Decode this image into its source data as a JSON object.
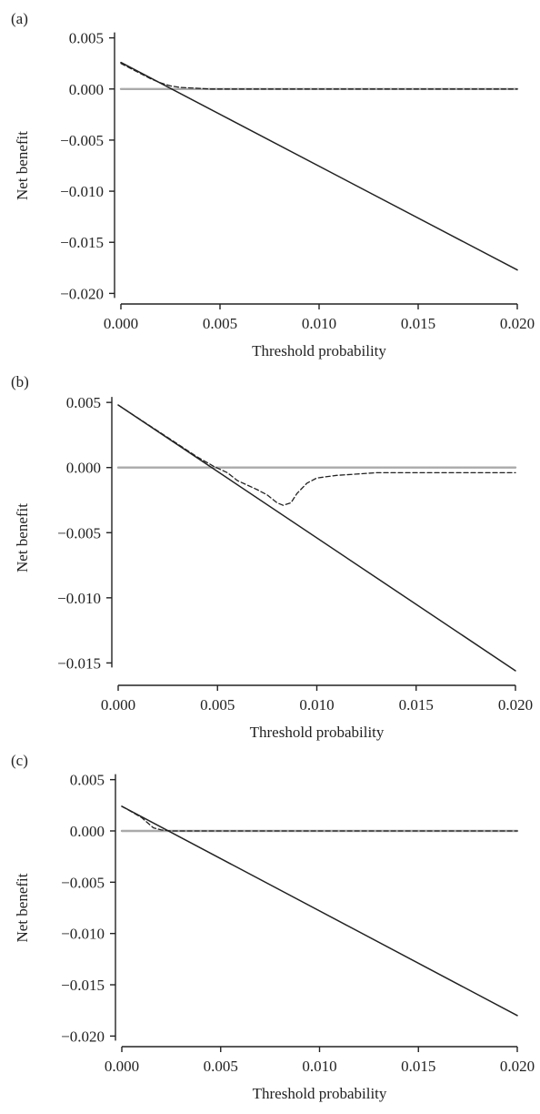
{
  "chart_data": [
    {
      "panel_label": "(a)",
      "type": "line",
      "xlabel": "Threshold probability",
      "ylabel": "Net benefit",
      "xlim": [
        0,
        0.02
      ],
      "ylim": [
        -0.0205,
        0.0055
      ],
      "x_ticks": [
        "0.000",
        "0.005",
        "0.010",
        "0.015",
        "0.020"
      ],
      "y_ticks": [
        "0.005",
        "0.000",
        "−0.005",
        "−0.010",
        "−0.015",
        "−0.020"
      ],
      "grid": false,
      "series": [
        {
          "style": "solid",
          "color": "#222222",
          "x": [
            0.0,
            0.02
          ],
          "y": [
            0.0026,
            -0.0177
          ]
        },
        {
          "style": "dashed",
          "color": "#222222",
          "x": [
            0.0,
            0.001,
            0.0015,
            0.002,
            0.0025,
            0.003,
            0.0035,
            0.004,
            0.0045,
            0.005,
            0.02
          ],
          "y": [
            0.0025,
            0.0015,
            0.001,
            0.0006,
            0.0003,
            0.00015,
            0.0001,
            5e-05,
            0.0,
            0.0,
            0.0
          ]
        },
        {
          "style": "solid",
          "color": "#aaaaaa",
          "x": [
            0.0,
            0.02
          ],
          "y": [
            0.0,
            0.0
          ]
        }
      ]
    },
    {
      "panel_label": "(b)",
      "type": "line",
      "xlabel": "Threshold probability",
      "ylabel": "Net benefit",
      "xlim": [
        0,
        0.02
      ],
      "ylim": [
        -0.0163,
        0.0055
      ],
      "x_ticks": [
        "0.000",
        "0.005",
        "0.010",
        "0.015",
        "0.020"
      ],
      "y_ticks": [
        "0.005",
        "0.000",
        "−0.005",
        "−0.010",
        "−0.015"
      ],
      "grid": false,
      "series": [
        {
          "style": "solid",
          "color": "#222222",
          "x": [
            0.0,
            0.02
          ],
          "y": [
            0.0048,
            -0.0156
          ]
        },
        {
          "style": "dashed",
          "color": "#222222",
          "x": [
            0.0,
            0.004,
            0.0048,
            0.0055,
            0.006,
            0.007,
            0.0075,
            0.008,
            0.0083,
            0.0087,
            0.009,
            0.0095,
            0.01,
            0.011,
            0.012,
            0.013,
            0.015,
            0.02
          ],
          "y": [
            0.0048,
            0.0008,
            0.0001,
            -0.0004,
            -0.001,
            -0.0017,
            -0.0021,
            -0.0027,
            -0.0029,
            -0.0027,
            -0.002,
            -0.0012,
            -0.0008,
            -0.0006,
            -0.0005,
            -0.0004,
            -0.0004,
            -0.0004
          ]
        },
        {
          "style": "solid",
          "color": "#aaaaaa",
          "x": [
            0.0,
            0.02
          ],
          "y": [
            0.0,
            0.0
          ]
        }
      ]
    },
    {
      "panel_label": "(c)",
      "type": "line",
      "xlabel": "Threshold probability",
      "ylabel": "Net benefit",
      "xlim": [
        0,
        0.02
      ],
      "ylim": [
        -0.0205,
        0.0055
      ],
      "x_ticks": [
        "0.000",
        "0.005",
        "0.010",
        "0.015",
        "0.020"
      ],
      "y_ticks": [
        "0.005",
        "0.000",
        "−0.005",
        "−0.010",
        "−0.015",
        "−0.020"
      ],
      "grid": false,
      "series": [
        {
          "style": "solid",
          "color": "#222222",
          "x": [
            0.0,
            0.02
          ],
          "y": [
            0.0024,
            -0.018
          ]
        },
        {
          "style": "dashed",
          "color": "#222222",
          "x": [
            0.0,
            0.001,
            0.0013,
            0.0016,
            0.002,
            0.0025,
            0.003,
            0.02
          ],
          "y": [
            0.0024,
            0.0013,
            0.0008,
            0.0003,
            0.0001,
            0.0,
            0.0,
            0.0
          ]
        },
        {
          "style": "solid",
          "color": "#aaaaaa",
          "x": [
            0.0,
            0.02
          ],
          "y": [
            0.0,
            0.0
          ]
        }
      ]
    }
  ]
}
